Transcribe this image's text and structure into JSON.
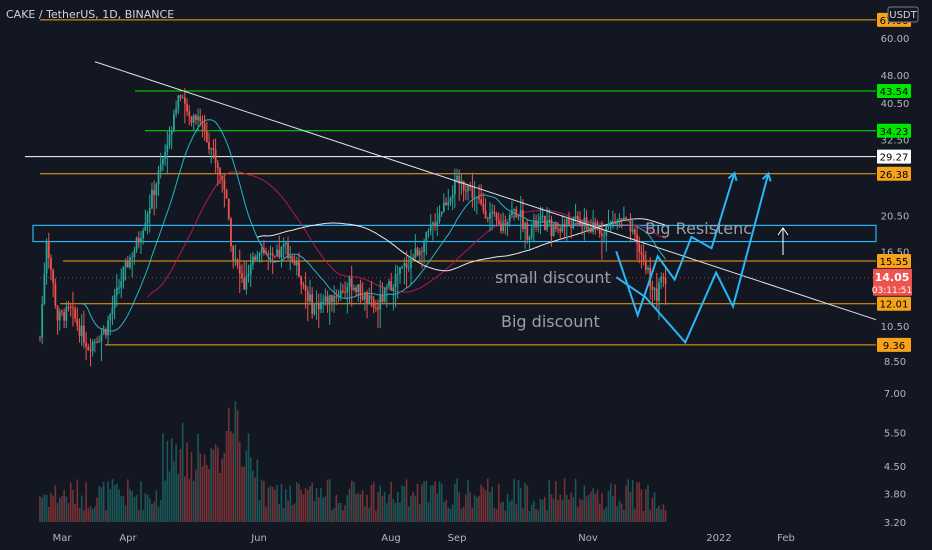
{
  "header": {
    "symbol_line": "CAKE / TetherUS, 1D, BINANCE",
    "currency": "USDT"
  },
  "colors": {
    "background": "#131722",
    "up": "#26a69a",
    "down": "#ef5350",
    "orange": "#f7a21b",
    "green": "#00e600",
    "white": "#ffffff",
    "cyan": "#29b6f6",
    "ma_fast": "#26c6da",
    "ma_mid": "#c2185b",
    "ma_slow": "#ffffff",
    "axis_text": "#b2b5be"
  },
  "chart_data": {
    "type": "candlestick",
    "scale": "log",
    "x_ticks": [
      "Mar",
      "Apr",
      "Jun",
      "Aug",
      "Sep",
      "Nov",
      "2022",
      "Feb"
    ],
    "y_ticks": [
      "60.00",
      "48.00",
      "40.50",
      "32.50",
      "20.50",
      "16.50",
      "10.50",
      "8.50",
      "7.00",
      "5.50",
      "4.50",
      "3.80",
      "3.20"
    ],
    "ylim": [
      3.05,
      72
    ],
    "price_tags": [
      {
        "text": "67.00",
        "value": 67.0,
        "color": "orange"
      },
      {
        "text": "43.54",
        "value": 43.54,
        "color": "green"
      },
      {
        "text": "34.23",
        "value": 34.23,
        "color": "green"
      },
      {
        "text": "29.27",
        "value": 29.27,
        "color": "white"
      },
      {
        "text": "26.38",
        "value": 26.38,
        "color": "orange"
      },
      {
        "text": "15.55",
        "value": 15.55,
        "color": "orange"
      },
      {
        "text": "12.01",
        "value": 12.01,
        "color": "orange"
      },
      {
        "text": "9.36",
        "value": 9.36,
        "color": "orange"
      }
    ],
    "last_price": {
      "value": 14.05,
      "text": "14.05",
      "countdown": "03:11:51",
      "color": "#ef5350"
    },
    "resistance_box": {
      "low": 17.5,
      "high": 19.3
    },
    "trendline": {
      "from": {
        "date": "Apr 3",
        "price": 52.0
      },
      "to": {
        "date": "Jan 26",
        "price": 10.9
      }
    },
    "annotations": [
      "Big Resistenc",
      "small discount",
      "Big discount"
    ],
    "projection_paths": [
      {
        "name": "path-1",
        "points": [
          [
            14.1,
            16.5
          ],
          [
            15.5,
            11.2
          ],
          [
            16.8,
            16.0
          ],
          [
            17.9,
            13.9
          ],
          [
            19.0,
            18.0
          ],
          [
            20.3,
            16.8
          ],
          [
            21.8,
            26.5
          ]
        ]
      },
      {
        "name": "path-2",
        "points": [
          [
            14.1,
            14.1
          ],
          [
            16.0,
            12.5
          ],
          [
            18.6,
            9.5
          ],
          [
            20.6,
            14.5
          ],
          [
            21.7,
            11.8
          ],
          [
            24.0,
            26.4
          ]
        ]
      }
    ]
  }
}
